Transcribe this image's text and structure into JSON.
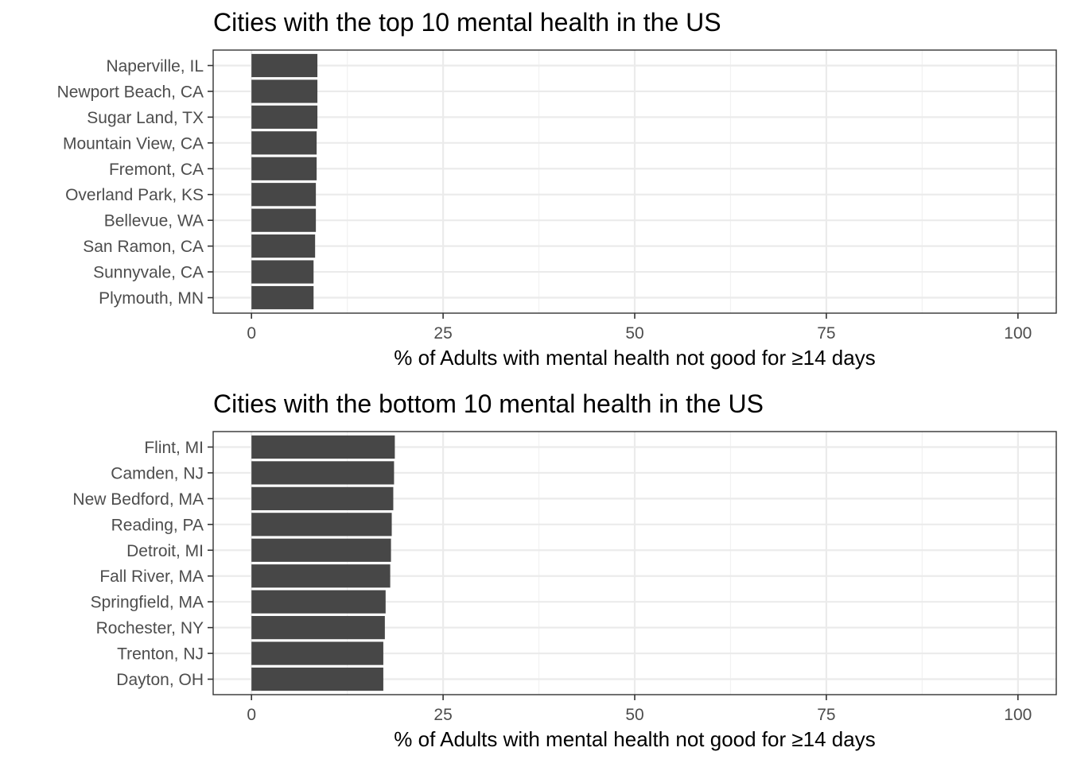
{
  "chart_data": [
    {
      "type": "bar",
      "orientation": "horizontal",
      "title": "Cities with the top 10 mental health in the US",
      "xlabel": "% of Adults with mental health not good for ≥14 days",
      "ylabel": "",
      "xlim": [
        -5,
        105
      ],
      "xticks": [
        0,
        25,
        50,
        75,
        100
      ],
      "grid": true,
      "categories": [
        "Naperville, IL",
        "Newport Beach, CA",
        "Sugar Land, TX",
        "Mountain View, CA",
        "Fremont, CA",
        "Overland Park, KS",
        "Bellevue, WA",
        "San Ramon, CA",
        "Sunnyvale, CA",
        "Plymouth, MN"
      ],
      "values": [
        8.6,
        8.6,
        8.6,
        8.5,
        8.5,
        8.4,
        8.4,
        8.3,
        8.1,
        8.1
      ]
    },
    {
      "type": "bar",
      "orientation": "horizontal",
      "title": "Cities with the bottom 10 mental health in the US",
      "xlabel": "% of Adults with mental health not good for ≥14 days",
      "ylabel": "",
      "xlim": [
        -5,
        105
      ],
      "xticks": [
        0,
        25,
        50,
        75,
        100
      ],
      "grid": true,
      "categories": [
        "Flint, MI",
        "Camden, NJ",
        "New Bedford, MA",
        "Reading, PA",
        "Detroit, MI",
        "Fall River, MA",
        "Springfield, MA",
        "Rochester, NY",
        "Trenton, NJ",
        "Dayton, OH"
      ],
      "values": [
        18.7,
        18.6,
        18.5,
        18.3,
        18.2,
        18.1,
        17.5,
        17.4,
        17.2,
        17.2
      ]
    }
  ],
  "colors": {
    "bar": "#474747",
    "panel_border": "#333333",
    "grid_major": "#ebebeb",
    "grid_minor": "#f2f2f2",
    "tick": "#333333"
  }
}
